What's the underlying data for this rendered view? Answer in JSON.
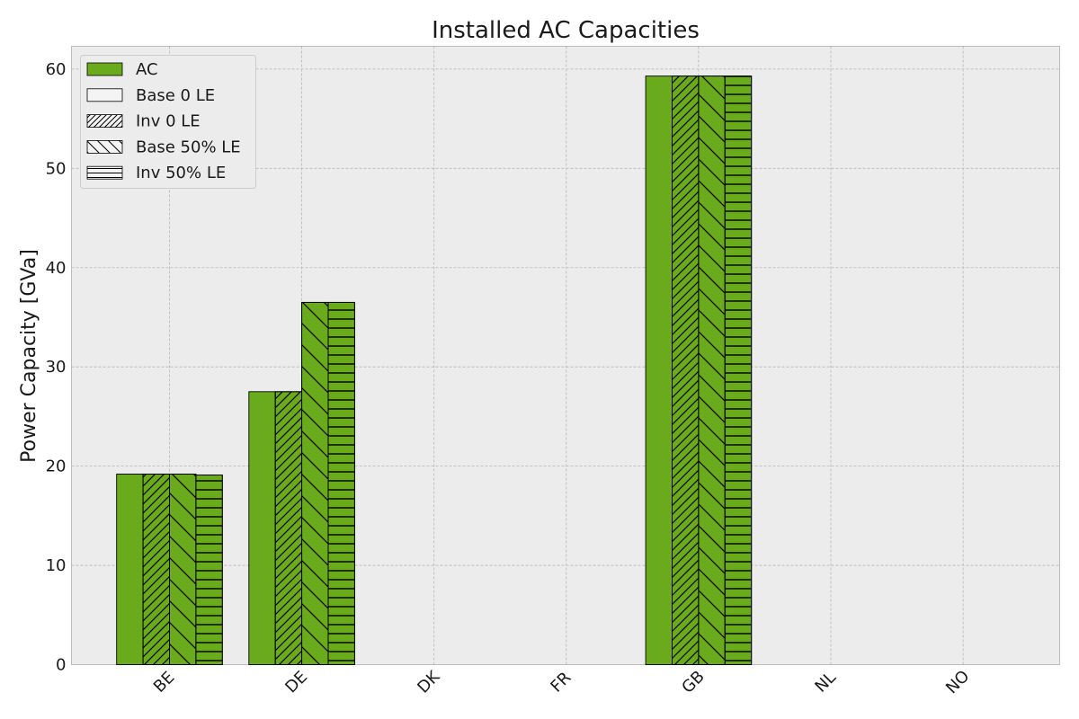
{
  "chart_data": {
    "type": "bar",
    "title": "Installed AC Capacities",
    "xlabel": "",
    "ylabel": "Power Capacity [GVa]",
    "categories": [
      "BE",
      "DE",
      "DK",
      "FR",
      "GB",
      "NL",
      "NO"
    ],
    "yticks": [
      "0",
      "10",
      "20",
      "30",
      "40",
      "50",
      "60"
    ],
    "ylim": [
      0,
      62.3
    ],
    "grid": true,
    "legend_placement": "top-left",
    "bar_color": "#6aab1e",
    "background_color": "#ececec",
    "legend": [
      {
        "label": "AC",
        "swatch": "solid"
      },
      {
        "label": "Base 0 LE",
        "swatch": "blank"
      },
      {
        "label": "Inv 0 LE",
        "swatch": "hatch-forward"
      },
      {
        "label": "Base 50% LE",
        "swatch": "hatch-back"
      },
      {
        "label": "Inv 50% LE",
        "swatch": "hatch-horizontal"
      }
    ],
    "series": [
      {
        "name": "Base 0 LE",
        "hatch": "none",
        "values": [
          19.2,
          27.5,
          0,
          0,
          59.3,
          0,
          0
        ]
      },
      {
        "name": "Inv 0 LE",
        "hatch": "forward",
        "values": [
          19.2,
          27.5,
          0,
          0,
          59.3,
          0,
          0
        ]
      },
      {
        "name": "Base 50% LE",
        "hatch": "back",
        "values": [
          19.2,
          36.5,
          0,
          0,
          59.3,
          0,
          0
        ]
      },
      {
        "name": "Inv 50% LE",
        "hatch": "horizontal",
        "values": [
          19.1,
          36.5,
          0,
          0,
          59.3,
          0,
          0
        ]
      }
    ]
  }
}
